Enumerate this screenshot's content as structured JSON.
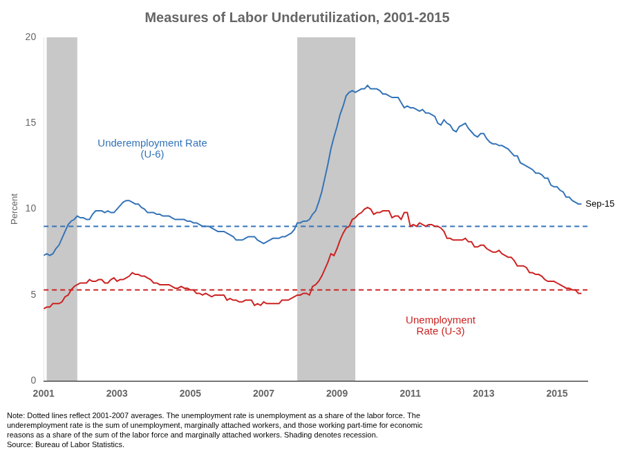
{
  "chart_data": {
    "type": "line",
    "title": "Measures of Labor Underutilization, 2001-2015",
    "y_label": "Percent",
    "x": [
      2001.0,
      2001.083,
      2001.167,
      2001.25,
      2001.333,
      2001.417,
      2001.5,
      2001.583,
      2001.667,
      2001.75,
      2001.833,
      2001.917,
      2002.0,
      2002.083,
      2002.167,
      2002.25,
      2002.333,
      2002.417,
      2002.5,
      2002.583,
      2002.667,
      2002.75,
      2002.833,
      2002.917,
      2003.0,
      2003.083,
      2003.167,
      2003.25,
      2003.333,
      2003.417,
      2003.5,
      2003.583,
      2003.667,
      2003.75,
      2003.833,
      2003.917,
      2004.0,
      2004.083,
      2004.167,
      2004.25,
      2004.333,
      2004.417,
      2004.5,
      2004.583,
      2004.667,
      2004.75,
      2004.833,
      2004.917,
      2005.0,
      2005.083,
      2005.167,
      2005.25,
      2005.333,
      2005.417,
      2005.5,
      2005.583,
      2005.667,
      2005.75,
      2005.833,
      2005.917,
      2006.0,
      2006.083,
      2006.167,
      2006.25,
      2006.333,
      2006.417,
      2006.5,
      2006.583,
      2006.667,
      2006.75,
      2006.833,
      2006.917,
      2007.0,
      2007.083,
      2007.167,
      2007.25,
      2007.333,
      2007.417,
      2007.5,
      2007.583,
      2007.667,
      2007.75,
      2007.833,
      2007.917,
      2008.0,
      2008.083,
      2008.167,
      2008.25,
      2008.333,
      2008.417,
      2008.5,
      2008.583,
      2008.667,
      2008.75,
      2008.833,
      2008.917,
      2009.0,
      2009.083,
      2009.167,
      2009.25,
      2009.333,
      2009.417,
      2009.5,
      2009.583,
      2009.667,
      2009.75,
      2009.833,
      2009.917,
      2010.0,
      2010.083,
      2010.167,
      2010.25,
      2010.333,
      2010.417,
      2010.5,
      2010.583,
      2010.667,
      2010.75,
      2010.833,
      2010.917,
      2011.0,
      2011.083,
      2011.167,
      2011.25,
      2011.333,
      2011.417,
      2011.5,
      2011.583,
      2011.667,
      2011.75,
      2011.833,
      2011.917,
      2012.0,
      2012.083,
      2012.167,
      2012.25,
      2012.333,
      2012.417,
      2012.5,
      2012.583,
      2012.667,
      2012.75,
      2012.833,
      2012.917,
      2013.0,
      2013.083,
      2013.167,
      2013.25,
      2013.333,
      2013.417,
      2013.5,
      2013.583,
      2013.667,
      2013.75,
      2013.833,
      2013.917,
      2014.0,
      2014.083,
      2014.167,
      2014.25,
      2014.333,
      2014.417,
      2014.5,
      2014.583,
      2014.667,
      2014.75,
      2014.833,
      2014.917,
      2015.0,
      2015.083,
      2015.167,
      2015.25,
      2015.333,
      2015.417,
      2015.5,
      2015.583,
      2015.667
    ],
    "series": [
      {
        "name": "Underemployment Rate (U-6)",
        "color": "#3373B8",
        "values": [
          7.3,
          7.4,
          7.3,
          7.4,
          7.7,
          7.9,
          8.3,
          8.7,
          9.1,
          9.3,
          9.4,
          9.6,
          9.5,
          9.5,
          9.4,
          9.4,
          9.7,
          9.9,
          9.9,
          9.9,
          9.8,
          9.9,
          9.8,
          9.8,
          10.0,
          10.2,
          10.4,
          10.5,
          10.5,
          10.4,
          10.3,
          10.3,
          10.1,
          10.0,
          9.8,
          9.8,
          9.8,
          9.7,
          9.7,
          9.6,
          9.6,
          9.6,
          9.5,
          9.4,
          9.4,
          9.4,
          9.4,
          9.3,
          9.3,
          9.2,
          9.2,
          9.1,
          9.0,
          9.0,
          9.0,
          8.9,
          8.8,
          8.7,
          8.7,
          8.7,
          8.6,
          8.5,
          8.4,
          8.2,
          8.2,
          8.2,
          8.3,
          8.4,
          8.4,
          8.4,
          8.2,
          8.1,
          8.0,
          8.1,
          8.2,
          8.3,
          8.3,
          8.3,
          8.4,
          8.4,
          8.5,
          8.6,
          8.8,
          9.2,
          9.2,
          9.3,
          9.3,
          9.4,
          9.7,
          9.9,
          10.4,
          11.0,
          11.8,
          12.6,
          13.5,
          14.2,
          14.8,
          15.5,
          16.0,
          16.6,
          16.8,
          16.9,
          16.8,
          16.9,
          17.0,
          17.0,
          17.2,
          17.0,
          17.0,
          17.0,
          16.9,
          16.7,
          16.7,
          16.6,
          16.5,
          16.5,
          16.5,
          16.2,
          15.9,
          16.0,
          15.9,
          15.9,
          15.8,
          15.7,
          15.8,
          15.6,
          15.6,
          15.5,
          15.4,
          15.0,
          14.9,
          15.2,
          15.0,
          14.9,
          14.6,
          14.5,
          14.8,
          14.9,
          15.0,
          14.7,
          14.5,
          14.3,
          14.2,
          14.4,
          14.4,
          14.1,
          13.9,
          13.8,
          13.8,
          13.7,
          13.7,
          13.6,
          13.5,
          13.3,
          13.1,
          13.1,
          12.7,
          12.6,
          12.5,
          12.4,
          12.3,
          12.1,
          12.1,
          12.0,
          11.8,
          11.8,
          11.4,
          11.3,
          11.3,
          11.1,
          11.0,
          10.7,
          10.7,
          10.5,
          10.4,
          10.3,
          10.3
        ]
      },
      {
        "name": "Unemployment Rate (U-3)",
        "color": "#CC2222",
        "values": [
          4.2,
          4.3,
          4.3,
          4.5,
          4.5,
          4.5,
          4.6,
          4.9,
          5.0,
          5.3,
          5.5,
          5.6,
          5.7,
          5.7,
          5.7,
          5.9,
          5.8,
          5.8,
          5.9,
          5.9,
          5.7,
          5.7,
          5.9,
          6.0,
          5.8,
          5.9,
          5.9,
          6.0,
          6.1,
          6.3,
          6.2,
          6.2,
          6.1,
          6.1,
          6.0,
          5.9,
          5.7,
          5.7,
          5.6,
          5.6,
          5.6,
          5.6,
          5.5,
          5.4,
          5.4,
          5.5,
          5.4,
          5.4,
          5.3,
          5.3,
          5.1,
          5.1,
          5.0,
          5.1,
          5.0,
          4.9,
          5.0,
          5.0,
          5.0,
          5.0,
          4.7,
          4.8,
          4.7,
          4.7,
          4.6,
          4.6,
          4.7,
          4.7,
          4.7,
          4.4,
          4.5,
          4.4,
          4.6,
          4.5,
          4.5,
          4.5,
          4.5,
          4.5,
          4.7,
          4.7,
          4.7,
          4.8,
          4.9,
          5.0,
          5.0,
          5.1,
          5.1,
          5.0,
          5.5,
          5.6,
          5.8,
          6.1,
          6.5,
          6.9,
          7.4,
          7.3,
          7.7,
          8.2,
          8.6,
          8.9,
          9.0,
          9.4,
          9.5,
          9.7,
          9.8,
          10.0,
          10.1,
          10.0,
          9.7,
          9.8,
          9.8,
          9.9,
          9.9,
          9.9,
          9.5,
          9.6,
          9.6,
          9.4,
          9.8,
          9.8,
          9.0,
          9.1,
          9.0,
          9.2,
          9.1,
          9.0,
          9.1,
          9.1,
          9.0,
          9.0,
          8.9,
          8.7,
          8.3,
          8.3,
          8.2,
          8.2,
          8.2,
          8.2,
          8.3,
          8.1,
          8.1,
          7.8,
          7.8,
          7.9,
          7.9,
          7.7,
          7.6,
          7.5,
          7.5,
          7.6,
          7.4,
          7.3,
          7.2,
          7.2,
          7.0,
          6.7,
          6.7,
          6.7,
          6.6,
          6.3,
          6.3,
          6.2,
          6.2,
          6.1,
          5.9,
          5.8,
          5.8,
          5.8,
          5.7,
          5.6,
          5.5,
          5.4,
          5.4,
          5.3,
          5.3,
          5.1,
          5.1
        ]
      }
    ],
    "reference_lines": [
      {
        "value": 9.0,
        "color": "#3373B8",
        "line_style": "dashed"
      },
      {
        "value": 5.3,
        "color": "#CC2222",
        "line_style": "dashed"
      }
    ],
    "shaded_ranges": {
      "color": "#C8C8C8",
      "ranges": [
        [
          2001.083,
          2001.917
        ],
        [
          2007.917,
          2009.5
        ]
      ]
    },
    "annotations": [
      {
        "text": [
          "Underemployment Rate",
          "(U-6)"
        ],
        "color": "#3373B8"
      },
      {
        "text": [
          "Unemployment",
          "Rate (U-3)"
        ],
        "color": "#CC2222"
      },
      {
        "text": [
          "Sep-15"
        ]
      }
    ],
    "note": [
      "Note: Dotted lines reflect 2001-2007 averages. The unemployment rate is unemployment as a share of the labor force. The",
      "underemployment rate is the sum of unemployment, marginally attached workers, and those working part-time for economic",
      "reasons as a share of the sum of the labor force and marginally attached workers. Shading denotes recession.",
      "Source: Bureau of Labor Statistics."
    ],
    "xlim": [
      2001.0,
      2015.83
    ],
    "xticks": [
      2001,
      2003,
      2005,
      2007,
      2009,
      2011,
      2013,
      2015
    ],
    "ylim": [
      0,
      20
    ],
    "yticks": [
      0,
      5,
      10,
      15,
      20
    ],
    "grid": false,
    "legend": false
  }
}
